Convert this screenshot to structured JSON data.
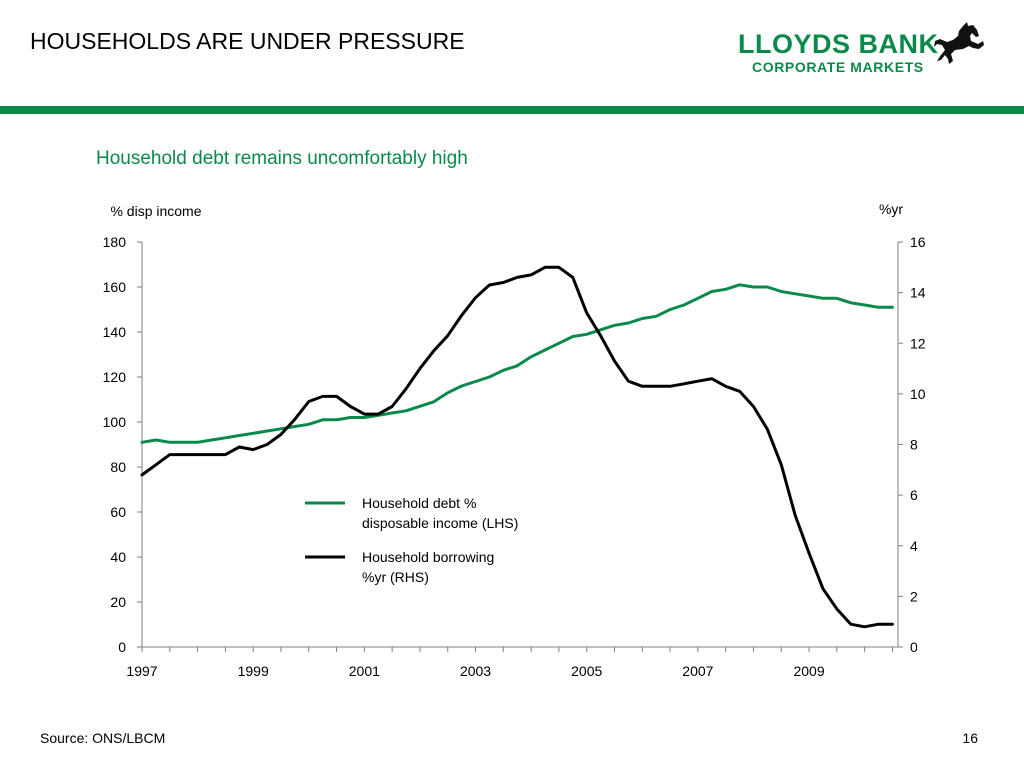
{
  "slide": {
    "title": "HOUSEHOLDS ARE UNDER PRESSURE",
    "source": "Source: ONS/LBCM",
    "page_number": "16"
  },
  "logo": {
    "line1": "LLOYDS BANK",
    "line2": "CORPORATE MARKETS",
    "icon": "black-horse-icon"
  },
  "colors": {
    "brand_green": "#0a8a4a",
    "debt_series": "#0a8a4a",
    "borrowing_series": "#000000"
  },
  "chart_data": {
    "type": "line",
    "title": "Household debt remains uncomfortably high",
    "y_left_label": "% disp income",
    "y_right_label": "%yr",
    "x_ticks": [
      "1997",
      "1999",
      "2001",
      "2003",
      "2005",
      "2007",
      "2009"
    ],
    "xlim": [
      1997,
      2010.6
    ],
    "ylim_left": [
      0,
      180
    ],
    "ylim_right": [
      0,
      16
    ],
    "y_left_ticks": [
      0,
      20,
      40,
      60,
      80,
      100,
      120,
      140,
      160,
      180
    ],
    "y_right_ticks": [
      0,
      2,
      4,
      6,
      8,
      10,
      12,
      14,
      16
    ],
    "grid": false,
    "legend_position": "center",
    "series": [
      {
        "name": "Household debt % disposable income (LHS)",
        "axis": "left",
        "color": "#0a8a4a",
        "x": [
          1997.0,
          1997.25,
          1997.5,
          1997.75,
          1998.0,
          1998.25,
          1998.5,
          1998.75,
          1999.0,
          1999.25,
          1999.5,
          1999.75,
          2000.0,
          2000.25,
          2000.5,
          2000.75,
          2001.0,
          2001.25,
          2001.5,
          2001.75,
          2002.0,
          2002.25,
          2002.5,
          2002.75,
          2003.0,
          2003.25,
          2003.5,
          2003.75,
          2004.0,
          2004.25,
          2004.5,
          2004.75,
          2005.0,
          2005.25,
          2005.5,
          2005.75,
          2006.0,
          2006.25,
          2006.5,
          2006.75,
          2007.0,
          2007.25,
          2007.5,
          2007.75,
          2008.0,
          2008.25,
          2008.5,
          2008.75,
          2009.0,
          2009.25,
          2009.5,
          2009.75,
          2010.0,
          2010.25,
          2010.5
        ],
        "values": [
          91,
          92,
          91,
          91,
          91,
          92,
          93,
          94,
          95,
          96,
          97,
          98,
          99,
          101,
          101,
          102,
          102,
          103,
          104,
          105,
          107,
          109,
          113,
          116,
          118,
          120,
          123,
          125,
          129,
          132,
          135,
          138,
          139,
          141,
          143,
          144,
          146,
          147,
          150,
          152,
          155,
          158,
          159,
          161,
          160,
          160,
          158,
          157,
          156,
          155,
          155,
          153,
          152,
          151,
          151
        ]
      },
      {
        "name": "Household borrowing %yr (RHS)",
        "axis": "right",
        "color": "#000000",
        "x": [
          1997.0,
          1997.25,
          1997.5,
          1997.75,
          1998.0,
          1998.25,
          1998.5,
          1998.75,
          1999.0,
          1999.25,
          1999.5,
          1999.75,
          2000.0,
          2000.25,
          2000.5,
          2000.75,
          2001.0,
          2001.25,
          2001.5,
          2001.75,
          2002.0,
          2002.25,
          2002.5,
          2002.75,
          2003.0,
          2003.25,
          2003.5,
          2003.75,
          2004.0,
          2004.25,
          2004.5,
          2004.75,
          2005.0,
          2005.25,
          2005.5,
          2005.75,
          2006.0,
          2006.25,
          2006.5,
          2006.75,
          2007.0,
          2007.25,
          2007.5,
          2007.75,
          2008.0,
          2008.25,
          2008.5,
          2008.75,
          2009.0,
          2009.25,
          2009.5,
          2009.75,
          2010.0,
          2010.25,
          2010.5
        ],
        "values": [
          6.8,
          7.2,
          7.6,
          7.6,
          7.6,
          7.6,
          7.6,
          7.9,
          7.8,
          8.0,
          8.4,
          9.0,
          9.7,
          9.9,
          9.9,
          9.5,
          9.2,
          9.2,
          9.5,
          10.2,
          11.0,
          11.7,
          12.3,
          13.1,
          13.8,
          14.3,
          14.4,
          14.6,
          14.7,
          15.0,
          15.0,
          14.6,
          13.2,
          12.3,
          11.3,
          10.5,
          10.3,
          10.3,
          10.3,
          10.4,
          10.5,
          10.6,
          10.3,
          10.1,
          9.5,
          8.6,
          7.2,
          5.2,
          3.7,
          2.3,
          1.5,
          0.9,
          0.8,
          0.9,
          0.9
        ]
      }
    ]
  }
}
